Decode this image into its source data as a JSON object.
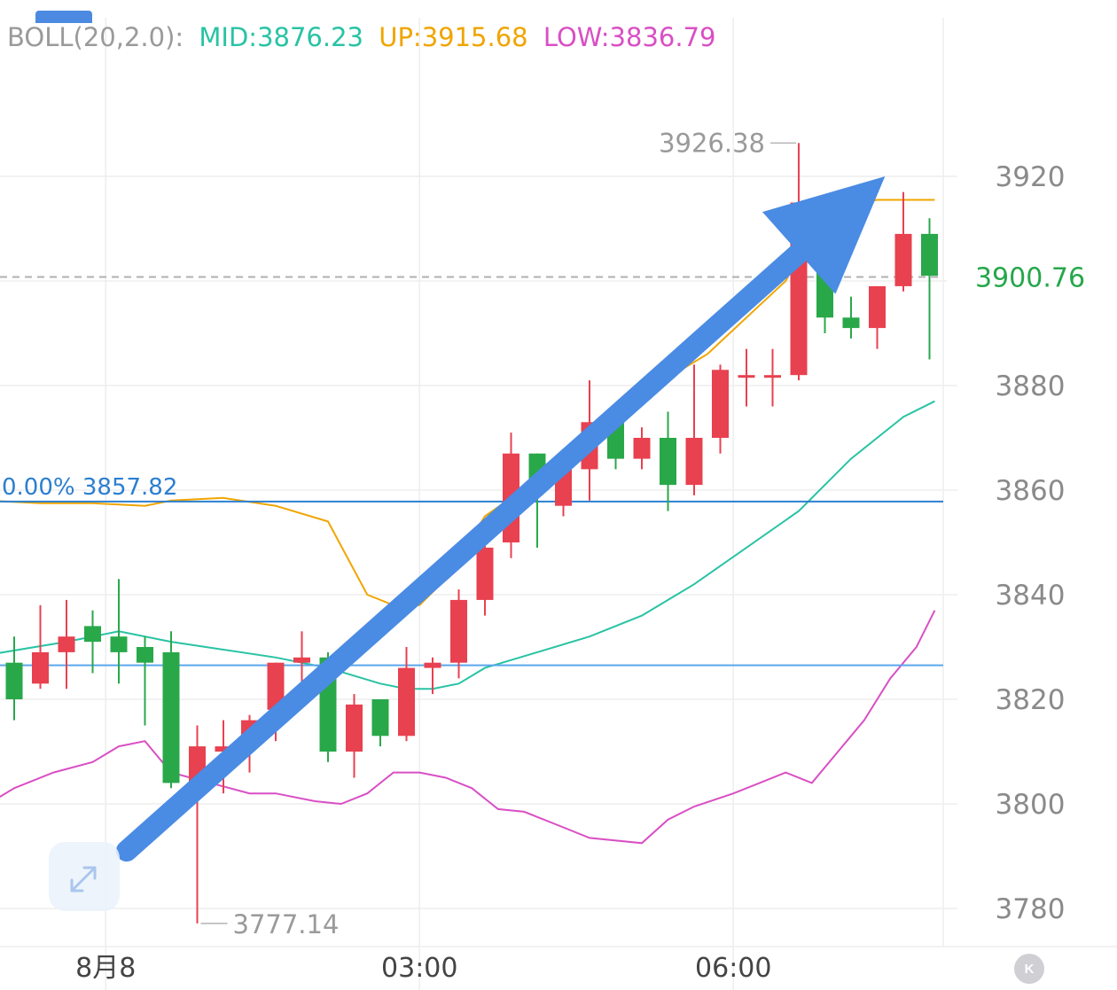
{
  "indicator": {
    "name": "BOLL(20,2.0):",
    "mid": "MID:3876.23",
    "up": "UP:3915.68",
    "low": "LOW:3836.79",
    "colors": {
      "name": "#9a9a9a",
      "mid": "#29c3a4",
      "up": "#f0a500",
      "low": "#d94fc4"
    }
  },
  "colors": {
    "up_candle": "#e8414f",
    "down_candle": "#29a84a",
    "grid": "#eeeeee",
    "arrow": "#4a8be4",
    "fib_line": "#2b7fd0",
    "lower_line": "#5aa6ec",
    "last_price": "#25a74a"
  },
  "chart_data": {
    "type": "candlestick",
    "y_axis": {
      "ticks": [
        3780,
        3800,
        3820,
        3840,
        3860,
        3880,
        3900,
        3920
      ],
      "labels": [
        "3780",
        "3800",
        "3820",
        "3840",
        "3860",
        "3880",
        "3920"
      ],
      "range": [
        3776,
        3929
      ]
    },
    "x_axis": {
      "labels": [
        "8月8",
        "03:00",
        "06:00"
      ],
      "label_slots": [
        3.5,
        15.5,
        27.5
      ]
    },
    "candles": [
      {
        "o": 3827,
        "h": 3832,
        "l": 3816,
        "c": 3820
      },
      {
        "o": 3823,
        "h": 3838,
        "l": 3822,
        "c": 3829
      },
      {
        "o": 3829,
        "h": 3839,
        "l": 3822,
        "c": 3832
      },
      {
        "o": 3834,
        "h": 3837,
        "l": 3825,
        "c": 3831
      },
      {
        "o": 3832,
        "h": 3843,
        "l": 3823,
        "c": 3829
      },
      {
        "o": 3830,
        "h": 3832,
        "l": 3815,
        "c": 3827
      },
      {
        "o": 3829,
        "h": 3833,
        "l": 3803,
        "c": 3804
      },
      {
        "o": 3803,
        "h": 3815,
        "l": 3777.14,
        "c": 3811
      },
      {
        "o": 3810,
        "h": 3816,
        "l": 3802,
        "c": 3811
      },
      {
        "o": 3812,
        "h": 3817,
        "l": 3806,
        "c": 3816
      },
      {
        "o": 3818,
        "h": 3827,
        "l": 3812,
        "c": 3827
      },
      {
        "o": 3827,
        "h": 3833,
        "l": 3820,
        "c": 3828
      },
      {
        "o": 3828,
        "h": 3829,
        "l": 3808,
        "c": 3810
      },
      {
        "o": 3810,
        "h": 3821,
        "l": 3805,
        "c": 3819
      },
      {
        "o": 3820,
        "h": 3820,
        "l": 3811,
        "c": 3813
      },
      {
        "o": 3813,
        "h": 3830,
        "l": 3812,
        "c": 3826
      },
      {
        "o": 3826,
        "h": 3828,
        "l": 3821,
        "c": 3827
      },
      {
        "o": 3827,
        "h": 3841,
        "l": 3824,
        "c": 3839
      },
      {
        "o": 3839,
        "h": 3852,
        "l": 3836,
        "c": 3849
      },
      {
        "o": 3850,
        "h": 3871,
        "l": 3847,
        "c": 3867
      },
      {
        "o": 3867,
        "h": 3867,
        "l": 3849,
        "c": 3862
      },
      {
        "o": 3857,
        "h": 3866,
        "l": 3855,
        "c": 3864
      },
      {
        "o": 3864,
        "h": 3881,
        "l": 3858,
        "c": 3873
      },
      {
        "o": 3873,
        "h": 3875,
        "l": 3864,
        "c": 3866
      },
      {
        "o": 3866,
        "h": 3872,
        "l": 3864,
        "c": 3870
      },
      {
        "o": 3870,
        "h": 3875,
        "l": 3856,
        "c": 3861
      },
      {
        "o": 3861,
        "h": 3884,
        "l": 3859,
        "c": 3870
      },
      {
        "o": 3870,
        "h": 3884,
        "l": 3867,
        "c": 3883
      },
      {
        "o": 3882,
        "h": 3887,
        "l": 3876,
        "c": 3882
      },
      {
        "o": 3882,
        "h": 3887,
        "l": 3876,
        "c": 3882
      },
      {
        "o": 3882,
        "h": 3926.38,
        "l": 3881,
        "c": 3915
      },
      {
        "o": 3915,
        "h": 3916,
        "l": 3890,
        "c": 3893
      },
      {
        "o": 3893,
        "h": 3897,
        "l": 3889,
        "c": 3891
      },
      {
        "o": 3891,
        "h": 3899,
        "l": 3887,
        "c": 3899
      },
      {
        "o": 3899,
        "h": 3917,
        "l": 3898,
        "c": 3909
      },
      {
        "o": 3909,
        "h": 3912,
        "l": 3885,
        "c": 3901
      }
    ],
    "boll_up": [
      [
        -1,
        3858
      ],
      [
        1,
        3857.5
      ],
      [
        3,
        3857.5
      ],
      [
        5,
        3857
      ],
      [
        6,
        3858
      ],
      [
        8,
        3858.5
      ],
      [
        10,
        3857
      ],
      [
        12,
        3854
      ],
      [
        13.5,
        3840
      ],
      [
        14.5,
        3838
      ],
      [
        15.5,
        3838
      ],
      [
        16.5,
        3843
      ],
      [
        18,
        3855
      ],
      [
        20,
        3862
      ],
      [
        22,
        3869
      ],
      [
        23.5,
        3878
      ],
      [
        24.5,
        3882
      ],
      [
        25.5,
        3883
      ],
      [
        26.5,
        3886
      ],
      [
        28,
        3893
      ],
      [
        29.5,
        3900
      ],
      [
        31,
        3914
      ],
      [
        33,
        3915.5
      ],
      [
        35.2,
        3915.5
      ]
    ],
    "boll_mid": [
      [
        -1,
        3828.5
      ],
      [
        2,
        3831
      ],
      [
        4,
        3833
      ],
      [
        6,
        3831
      ],
      [
        8,
        3829.5
      ],
      [
        10,
        3828
      ],
      [
        12,
        3826
      ],
      [
        14,
        3823
      ],
      [
        15,
        3822
      ],
      [
        16,
        3822
      ],
      [
        17,
        3823
      ],
      [
        18,
        3826
      ],
      [
        20,
        3829
      ],
      [
        22,
        3832
      ],
      [
        24,
        3836
      ],
      [
        26,
        3842
      ],
      [
        28,
        3849
      ],
      [
        30,
        3856
      ],
      [
        32,
        3866
      ],
      [
        34,
        3874
      ],
      [
        35.2,
        3877
      ]
    ],
    "boll_low": [
      [
        -1,
        3800
      ],
      [
        0,
        3803
      ],
      [
        1.5,
        3806
      ],
      [
        3,
        3808
      ],
      [
        4,
        3811
      ],
      [
        5,
        3812
      ],
      [
        6,
        3806
      ],
      [
        7.5,
        3804
      ],
      [
        9,
        3802
      ],
      [
        10,
        3802
      ],
      [
        11.5,
        3800.5
      ],
      [
        12.5,
        3800
      ],
      [
        13.5,
        3802
      ],
      [
        14.5,
        3806
      ],
      [
        15.5,
        3806
      ],
      [
        16.5,
        3805
      ],
      [
        17.5,
        3803
      ],
      [
        18.5,
        3799
      ],
      [
        19.5,
        3798.5
      ],
      [
        21,
        3795.5
      ],
      [
        22,
        3793.5
      ],
      [
        24,
        3792.5
      ],
      [
        25,
        3797
      ],
      [
        26,
        3799.5
      ],
      [
        27.5,
        3802
      ],
      [
        28.5,
        3804
      ],
      [
        29.5,
        3806
      ],
      [
        30.5,
        3804
      ],
      [
        31.5,
        3810
      ],
      [
        32.5,
        3816
      ],
      [
        33.5,
        3824
      ],
      [
        34.5,
        3830
      ],
      [
        35.2,
        3837
      ]
    ],
    "fib_level": {
      "label": "0.00% 3857.82",
      "value": 3857.82
    },
    "lower_level": {
      "value": 3826.5
    },
    "last_price": {
      "label": "3900.76",
      "value": 3900.76
    },
    "high_marker": {
      "label": "3926.38",
      "value": 3926.38,
      "slot": 30
    },
    "low_marker": {
      "label": "3777.14",
      "value": 3777.14,
      "slot": 7
    },
    "trend_arrow": {
      "from": [
        4.3,
        3791
      ],
      "to": [
        33.3,
        3920
      ]
    }
  }
}
